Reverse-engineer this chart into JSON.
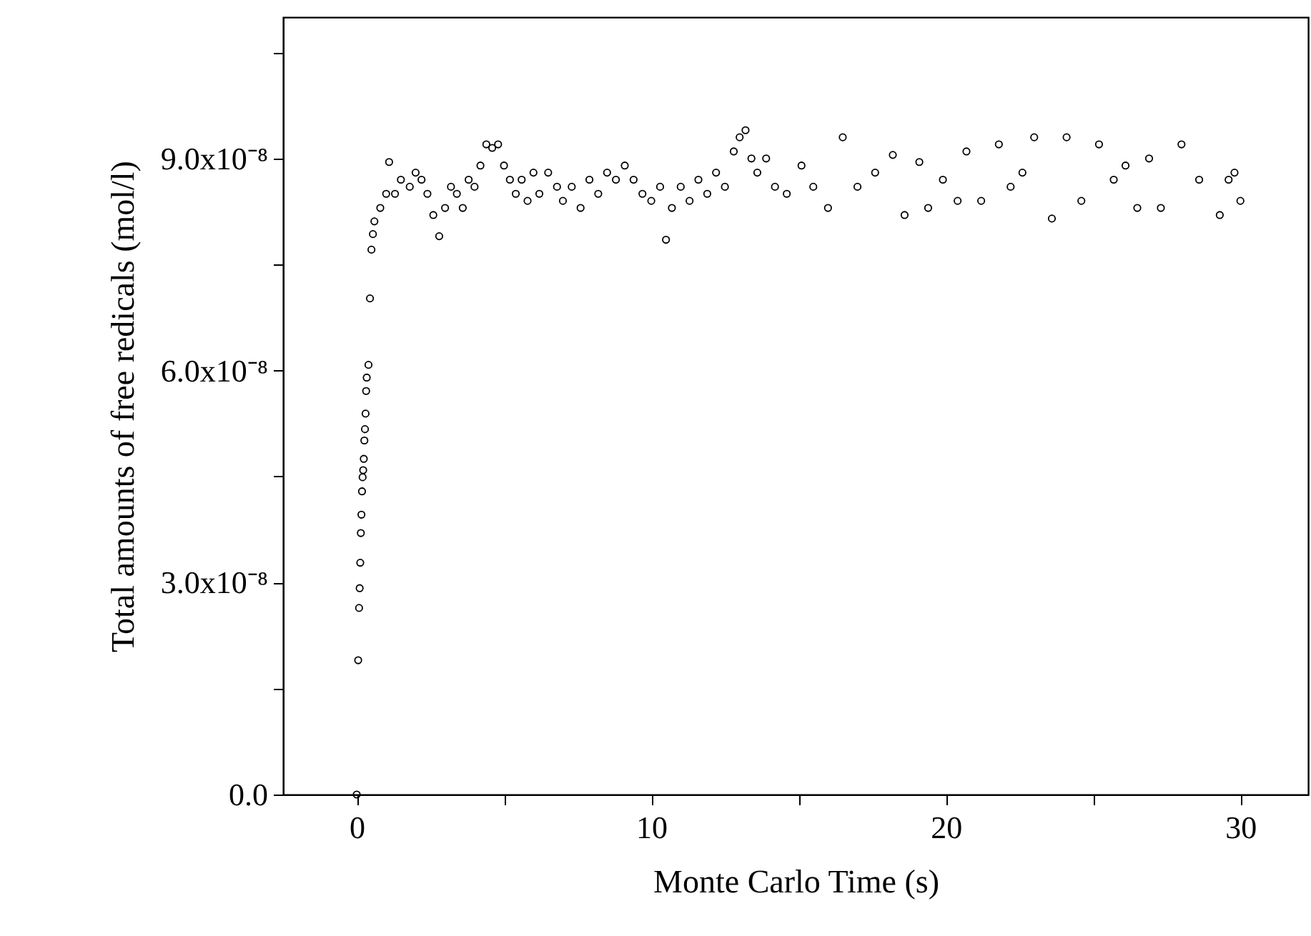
{
  "chart_data": {
    "type": "scatter",
    "xlabel": "Monte Carlo Time (s)",
    "ylabel": "Total amounts of free redicals (mol/l)",
    "marker": "circle",
    "grid": false,
    "legend": false,
    "xlim": [
      -2.5,
      32.3
    ],
    "ylim": [
      0,
      1.1e-07
    ],
    "xticks": [
      0,
      {
        "value": 5,
        "label": null
      },
      10,
      {
        "value": 15,
        "label": null
      },
      20,
      {
        "value": 25,
        "label": null
      },
      30
    ],
    "yticks": [
      {
        "value": 0,
        "label": "0.0"
      },
      {
        "value": 1.5e-08,
        "label": null
      },
      {
        "value": 3e-08,
        "label": "3.0x10⁻⁸"
      },
      {
        "value": 4.5e-08,
        "label": null
      },
      {
        "value": 6e-08,
        "label": "6.0x10⁻⁸"
      },
      {
        "value": 7.5e-08,
        "label": null
      },
      {
        "value": 9e-08,
        "label": "9.0x10⁻⁸"
      },
      {
        "value": 1.05e-07,
        "label": null
      }
    ],
    "x": [
      0,
      0.05,
      0.08,
      0.1,
      0.12,
      0.14,
      0.16,
      0.18,
      0.2,
      0.22,
      0.24,
      0.26,
      0.28,
      0.3,
      0.32,
      0.34,
      0.4,
      0.45,
      0.5,
      0.55,
      0.6,
      0.8,
      1.0,
      1.1,
      1.3,
      1.5,
      1.8,
      2.0,
      2.2,
      2.4,
      2.6,
      2.8,
      3.0,
      3.2,
      3.4,
      3.6,
      3.8,
      4.0,
      4.2,
      4.4,
      4.6,
      4.8,
      5.0,
      5.2,
      5.4,
      5.6,
      5.8,
      6.0,
      6.2,
      6.5,
      6.8,
      7.0,
      7.3,
      7.6,
      7.9,
      8.2,
      8.5,
      8.8,
      9.1,
      9.4,
      9.7,
      10.0,
      10.3,
      10.5,
      10.7,
      11.0,
      11.3,
      11.6,
      11.9,
      12.2,
      12.5,
      12.8,
      13.0,
      13.2,
      13.4,
      13.6,
      13.9,
      14.2,
      14.6,
      15.1,
      15.5,
      16.0,
      16.5,
      17.0,
      17.6,
      18.2,
      18.6,
      19.1,
      19.4,
      19.9,
      20.4,
      20.7,
      21.2,
      21.8,
      22.2,
      22.6,
      23.0,
      23.6,
      24.1,
      24.6,
      25.2,
      25.7,
      26.1,
      26.5,
      26.9,
      27.3,
      28.0,
      28.6,
      29.3,
      29.6,
      29.8,
      30.0
    ],
    "values": [
      0,
      1.9e-08,
      2.64e-08,
      2.92e-08,
      3.28e-08,
      3.7e-08,
      3.96e-08,
      4.29e-08,
      4.49e-08,
      4.59e-08,
      4.75e-08,
      5.01e-08,
      5.17e-08,
      5.39e-08,
      5.71e-08,
      5.9e-08,
      6.08e-08,
      7.02e-08,
      7.71e-08,
      7.93e-08,
      8.11e-08,
      8.3e-08,
      8.5e-08,
      8.95e-08,
      8.5e-08,
      8.7e-08,
      8.6e-08,
      8.8e-08,
      8.7e-08,
      8.5e-08,
      8.2e-08,
      7.9e-08,
      8.3e-08,
      8.6e-08,
      8.5e-08,
      8.3e-08,
      8.7e-08,
      8.6e-08,
      8.9e-08,
      9.2e-08,
      9.15e-08,
      9.2e-08,
      8.9e-08,
      8.7e-08,
      8.5e-08,
      8.7e-08,
      8.4e-08,
      8.8e-08,
      8.5e-08,
      8.8e-08,
      8.6e-08,
      8.4e-08,
      8.6e-08,
      8.3e-08,
      8.7e-08,
      8.5e-08,
      8.8e-08,
      8.7e-08,
      8.9e-08,
      8.7e-08,
      8.5e-08,
      8.4e-08,
      8.6e-08,
      7.85e-08,
      8.3e-08,
      8.6e-08,
      8.4e-08,
      8.7e-08,
      8.5e-08,
      8.8e-08,
      8.6e-08,
      9.1e-08,
      9.3e-08,
      9.4e-08,
      9e-08,
      8.8e-08,
      9e-08,
      8.6e-08,
      8.5e-08,
      8.9e-08,
      8.6e-08,
      8.3e-08,
      9.3e-08,
      8.6e-08,
      8.8e-08,
      9.05e-08,
      8.2e-08,
      8.95e-08,
      8.3e-08,
      8.7e-08,
      8.4e-08,
      9.1e-08,
      8.4e-08,
      9.2e-08,
      8.6e-08,
      8.8e-08,
      9.3e-08,
      8.15e-08,
      9.3e-08,
      8.4e-08,
      9.2e-08,
      8.7e-08,
      8.9e-08,
      8.3e-08,
      9e-08,
      8.3e-08,
      9.2e-08,
      8.7e-08,
      8.2e-08,
      8.7e-08,
      8.8e-08,
      8.4e-08
    ],
    "color": "#000000"
  }
}
